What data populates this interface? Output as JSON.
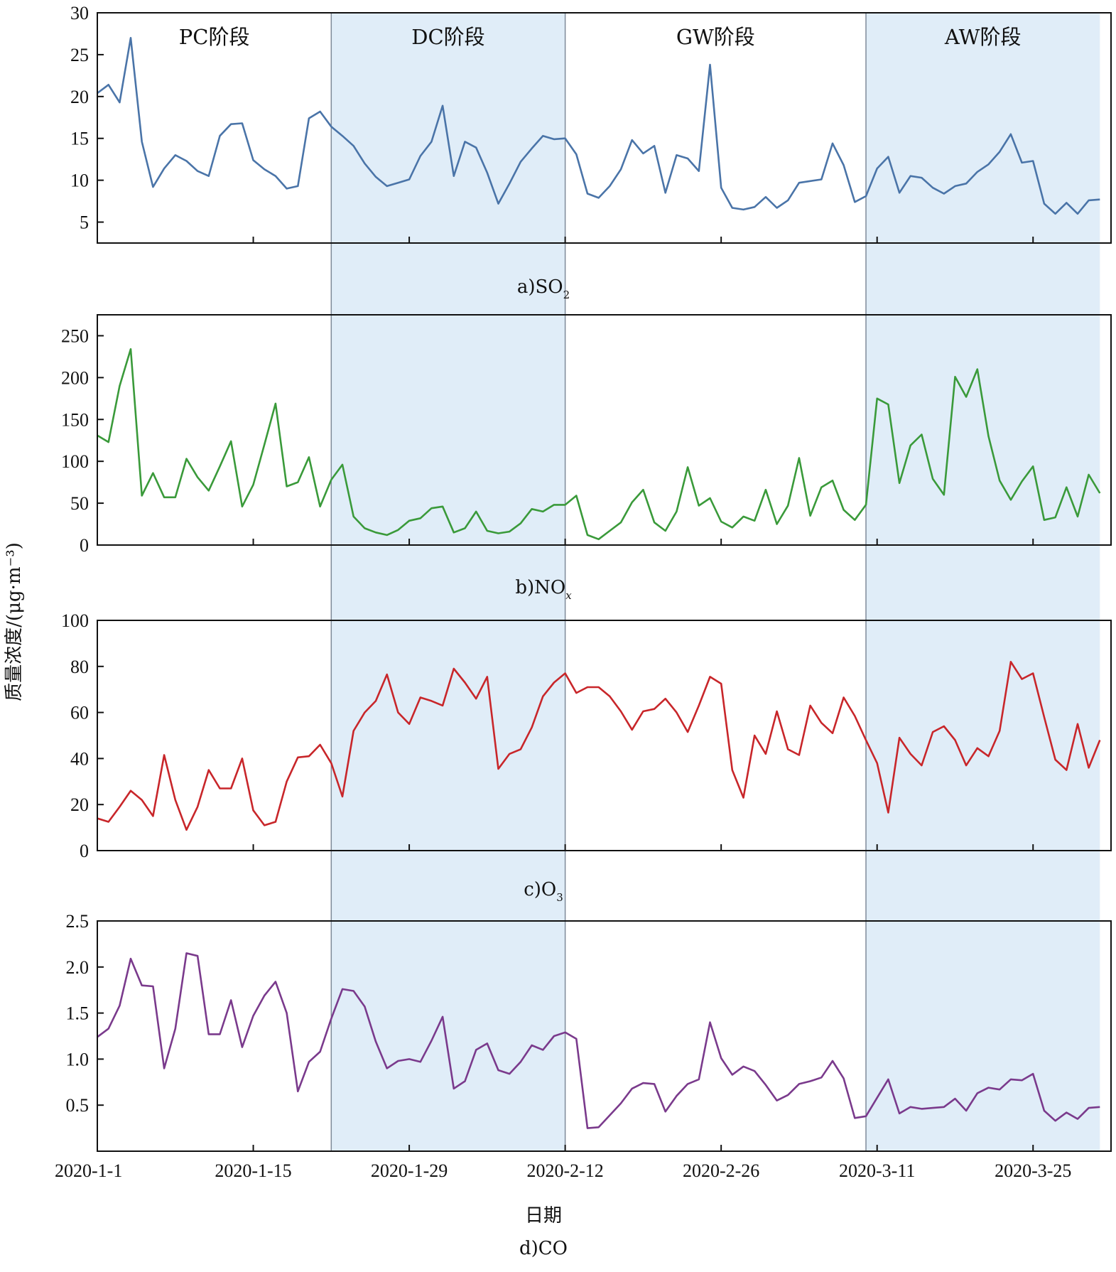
{
  "chart_data": {
    "type": "line",
    "ylabel": "质量浓度/(μg·m⁻³)",
    "xlabel": "日期",
    "x_start": "2020-01-01",
    "x_ticks": [
      "2020-1-1",
      "2020-1-15",
      "2020-1-29",
      "2020-2-12",
      "2020-2-26",
      "2020-3-11",
      "2020-3-25"
    ],
    "phases": [
      {
        "label": "PC阶段",
        "start": "2020-01-01",
        "end": "2020-01-22",
        "shaded": false
      },
      {
        "label": "DC阶段",
        "start": "2020-01-22",
        "end": "2020-02-12",
        "shaded": true
      },
      {
        "label": "GW阶段",
        "start": "2020-02-12",
        "end": "2020-03-10",
        "shaded": false
      },
      {
        "label": "AW阶段",
        "start": "2020-03-10",
        "end": "2020-03-31",
        "shaded": true
      }
    ],
    "shade_color": "#e0edf8",
    "panels": [
      {
        "id": "so2",
        "caption_prefix": "a)",
        "caption_main": "SO",
        "caption_sub": "2",
        "color": "#4a74a8",
        "ylim": [
          2.5,
          30
        ],
        "yticks": [
          5,
          10,
          15,
          20,
          25,
          30
        ],
        "values": [
          20.4,
          21.4,
          19.3,
          27.0,
          14.6,
          9.2,
          11.4,
          13.0,
          12.3,
          11.1,
          10.5,
          15.3,
          16.7,
          16.8,
          12.4,
          11.3,
          10.5,
          9.0,
          9.3,
          17.4,
          18.2,
          16.4,
          15.3,
          14.1,
          12.0,
          10.4,
          9.3,
          9.7,
          10.1,
          12.9,
          14.6,
          18.9,
          10.5,
          14.6,
          13.9,
          10.9,
          7.2,
          9.6,
          12.2,
          13.8,
          15.3,
          14.9,
          15.0,
          13.1,
          8.4,
          7.9,
          9.3,
          11.3,
          14.8,
          13.2,
          14.1,
          8.5,
          13.0,
          12.6,
          11.1,
          23.8,
          9.1,
          6.7,
          6.5,
          6.8,
          8.0,
          6.7,
          7.6,
          9.7,
          9.9,
          10.1,
          14.4,
          11.8,
          7.4,
          8.1,
          11.4,
          12.8,
          8.5,
          10.5,
          10.3,
          9.1,
          8.4,
          9.3,
          9.6,
          11.0,
          11.9,
          13.4,
          15.5,
          12.1,
          12.3,
          7.2,
          6.0,
          7.3,
          6.0,
          7.6,
          7.7
        ]
      },
      {
        "id": "nox",
        "caption_prefix": "b)",
        "caption_main": "NO",
        "caption_sub": "x",
        "color": "#3a9a3a",
        "ylim": [
          0,
          275
        ],
        "yticks": [
          0,
          50,
          100,
          150,
          200,
          250
        ],
        "values": [
          131,
          123,
          190,
          234,
          59,
          86,
          57,
          57,
          103,
          81,
          65,
          94,
          124,
          46,
          72,
          120,
          169,
          70,
          75,
          105,
          46,
          78,
          96,
          34,
          20,
          15,
          12,
          18,
          29,
          32,
          44,
          46,
          15,
          20,
          40,
          17,
          14,
          16,
          26,
          43,
          40,
          48,
          48,
          59,
          12,
          7,
          17,
          27,
          51,
          66,
          27,
          17,
          40,
          93,
          47,
          56,
          28,
          21,
          34,
          29,
          66,
          25,
          47,
          104,
          35,
          69,
          77,
          42,
          30,
          48,
          175,
          168,
          74,
          119,
          132,
          79,
          60,
          201,
          177,
          210,
          130,
          77,
          54,
          76,
          94,
          30,
          33,
          69,
          34,
          84,
          62
        ]
      },
      {
        "id": "o3",
        "caption_prefix": "c)",
        "caption_main": "O",
        "caption_sub": "3",
        "color": "#c8262a",
        "ylim": [
          0,
          100
        ],
        "yticks": [
          0,
          20,
          40,
          60,
          80,
          100
        ],
        "values": [
          14,
          12.5,
          19,
          26,
          22,
          15,
          41.5,
          22,
          9,
          19,
          35,
          27,
          27,
          40,
          17.5,
          11,
          12.5,
          30,
          40.5,
          41,
          46,
          38,
          23.5,
          52,
          60,
          65,
          76.5,
          60,
          55,
          66.5,
          65,
          63,
          79,
          73,
          66,
          75.5,
          35.5,
          42,
          44,
          53.5,
          67,
          73,
          77,
          68.5,
          71,
          71,
          67,
          60.5,
          52.5,
          60.5,
          61.5,
          66,
          60,
          51.5,
          63,
          75.5,
          72.5,
          35,
          23,
          50,
          42,
          60.5,
          44,
          41.5,
          63,
          55.5,
          51,
          66.5,
          58.5,
          48,
          38,
          16.5,
          49,
          42,
          37,
          51.5,
          54,
          48,
          37,
          44.5,
          41,
          52,
          82,
          74.5,
          77,
          58,
          39.5,
          35,
          55,
          36,
          48
        ]
      },
      {
        "id": "co",
        "caption_prefix": "d)",
        "caption_main": "CO",
        "caption_sub": "",
        "color": "#7a3a8c",
        "ylim": [
          0,
          2.5
        ],
        "yticks": [
          0.5,
          1.0,
          1.5,
          2.0,
          2.5
        ],
        "ytick_labels": [
          "0.5",
          "1.0",
          "1.5",
          "2.0",
          "2.5"
        ],
        "values": [
          1.24,
          1.33,
          1.58,
          2.09,
          1.8,
          1.79,
          0.9,
          1.33,
          2.15,
          2.12,
          1.27,
          1.27,
          1.64,
          1.13,
          1.47,
          1.69,
          1.84,
          1.5,
          0.65,
          0.97,
          1.08,
          1.44,
          1.76,
          1.74,
          1.57,
          1.19,
          0.9,
          0.98,
          1.0,
          0.97,
          1.2,
          1.46,
          0.68,
          0.76,
          1.1,
          1.17,
          0.88,
          0.84,
          0.97,
          1.15,
          1.1,
          1.25,
          1.29,
          1.22,
          0.25,
          0.26,
          0.39,
          0.52,
          0.68,
          0.74,
          0.73,
          0.43,
          0.6,
          0.73,
          0.78,
          1.4,
          1.01,
          0.83,
          0.92,
          0.87,
          0.72,
          0.55,
          0.61,
          0.73,
          0.76,
          0.8,
          0.98,
          0.79,
          0.36,
          0.38,
          0.58,
          0.78,
          0.41,
          0.48,
          0.46,
          0.47,
          0.48,
          0.57,
          0.44,
          0.63,
          0.69,
          0.67,
          0.78,
          0.77,
          0.84,
          0.44,
          0.33,
          0.42,
          0.35,
          0.47,
          0.48
        ]
      }
    ]
  }
}
